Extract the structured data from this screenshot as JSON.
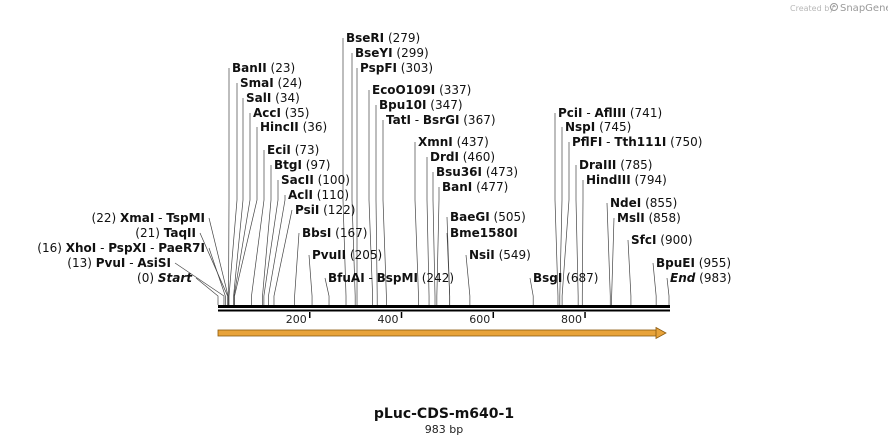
{
  "branding": {
    "created_by": "Created by",
    "product": "SnapGene"
  },
  "map": {
    "name": "pLuc-CDS-m640-1",
    "length_label": "983 bp",
    "length": 983,
    "scale_ticks": [
      "200",
      "400",
      "600",
      "800"
    ],
    "colors": {
      "feature_arrow": "#E8A33A",
      "backbone": "#000000",
      "leader": "#444444"
    }
  },
  "sites": [
    {
      "text": [
        "BseRI"
      ],
      "pos": "(279)",
      "bp": 279
    },
    {
      "text": [
        "BseYI"
      ],
      "pos": "(299)",
      "bp": 299
    },
    {
      "text": [
        "PspFI"
      ],
      "pos": "(303)",
      "bp": 303
    },
    {
      "text": [
        "EcoO109I"
      ],
      "pos": "(337)",
      "bp": 337
    },
    {
      "text": [
        "Bpu10I"
      ],
      "pos": "(347)",
      "bp": 347
    },
    {
      "text": [
        "TatI",
        " - ",
        "BsrGI"
      ],
      "pos": "(367)",
      "bp": 367
    },
    {
      "text": [
        "BanII"
      ],
      "pos": "(23)",
      "bp": 23
    },
    {
      "text": [
        "SmaI"
      ],
      "pos": "(24)",
      "bp": 24
    },
    {
      "text": [
        "SalI"
      ],
      "pos": "(34)",
      "bp": 34
    },
    {
      "text": [
        "AccI"
      ],
      "pos": "(35)",
      "bp": 35
    },
    {
      "text": [
        "HincII"
      ],
      "pos": "(36)",
      "bp": 36
    },
    {
      "text": [
        "EciI"
      ],
      "pos": "(73)",
      "bp": 73
    },
    {
      "text": [
        "BtgI"
      ],
      "pos": "(97)",
      "bp": 97
    },
    {
      "text": [
        "SacII"
      ],
      "pos": "(100)",
      "bp": 100
    },
    {
      "text": [
        "AclI"
      ],
      "pos": "(110)",
      "bp": 110
    },
    {
      "text": [
        "PsiI"
      ],
      "pos": "(122)",
      "bp": 122
    },
    {
      "text": [
        "BbsI"
      ],
      "pos": "(167)",
      "bp": 167
    },
    {
      "text": [
        "PvuII"
      ],
      "pos": "(205)",
      "bp": 205
    },
    {
      "text": [
        "BfuAI",
        " - ",
        "BspMI"
      ],
      "pos": "(242)",
      "bp": 242
    },
    {
      "pos": "(22)",
      "text": [
        "XmaI",
        " - ",
        "TspMI"
      ],
      "bp": 22,
      "left": true
    },
    {
      "pos": "(21)",
      "text": [
        "TaqII"
      ],
      "bp": 21,
      "left": true
    },
    {
      "pos": "(16)",
      "text": [
        "XhoI",
        " - ",
        "PspXI",
        " - ",
        "PaeR7I"
      ],
      "bp": 16,
      "left": true
    },
    {
      "pos": "(13)",
      "text": [
        "PvuI",
        " - ",
        "AsiSI"
      ],
      "bp": 13,
      "left": true
    },
    {
      "pos": "(0)",
      "text": [
        "Start"
      ],
      "bp": 0,
      "left": true,
      "italic": true
    },
    {
      "text": [
        "XmnI"
      ],
      "pos": "(437)",
      "bp": 437
    },
    {
      "text": [
        "DrdI"
      ],
      "pos": "(460)",
      "bp": 460
    },
    {
      "text": [
        "Bsu36I"
      ],
      "pos": "(473)",
      "bp": 473
    },
    {
      "text": [
        "BanI"
      ],
      "pos": "(477)",
      "bp": 477
    },
    {
      "text": [
        "BaeGI"
      ],
      "pos": "(505)",
      "bp": 505
    },
    {
      "text": [
        "Bme1580I"
      ],
      "pos": "",
      "bp": 505
    },
    {
      "text": [
        "NsiI"
      ],
      "pos": "(549)",
      "bp": 549
    },
    {
      "text": [
        "BsgI"
      ],
      "pos": "(687)",
      "bp": 687
    },
    {
      "text": [
        "PciI",
        " - ",
        "AflIII"
      ],
      "pos": "(741)",
      "bp": 741
    },
    {
      "text": [
        "NspI"
      ],
      "pos": "(745)",
      "bp": 745
    },
    {
      "text": [
        "PflFI",
        " - ",
        "Tth111I"
      ],
      "pos": "(750)",
      "bp": 750
    },
    {
      "text": [
        "DraIII"
      ],
      "pos": "(785)",
      "bp": 785
    },
    {
      "text": [
        "HindIII"
      ],
      "pos": "(794)",
      "bp": 794
    },
    {
      "text": [
        "NdeI"
      ],
      "pos": "(855)",
      "bp": 855
    },
    {
      "text": [
        "MslI"
      ],
      "pos": "(858)",
      "bp": 858
    },
    {
      "text": [
        "SfcI"
      ],
      "pos": "(900)",
      "bp": 900
    },
    {
      "text": [
        "BpuEI"
      ],
      "pos": "(955)",
      "bp": 955
    },
    {
      "text": [
        "End"
      ],
      "pos": "(983)",
      "bp": 983,
      "italic": true
    }
  ]
}
